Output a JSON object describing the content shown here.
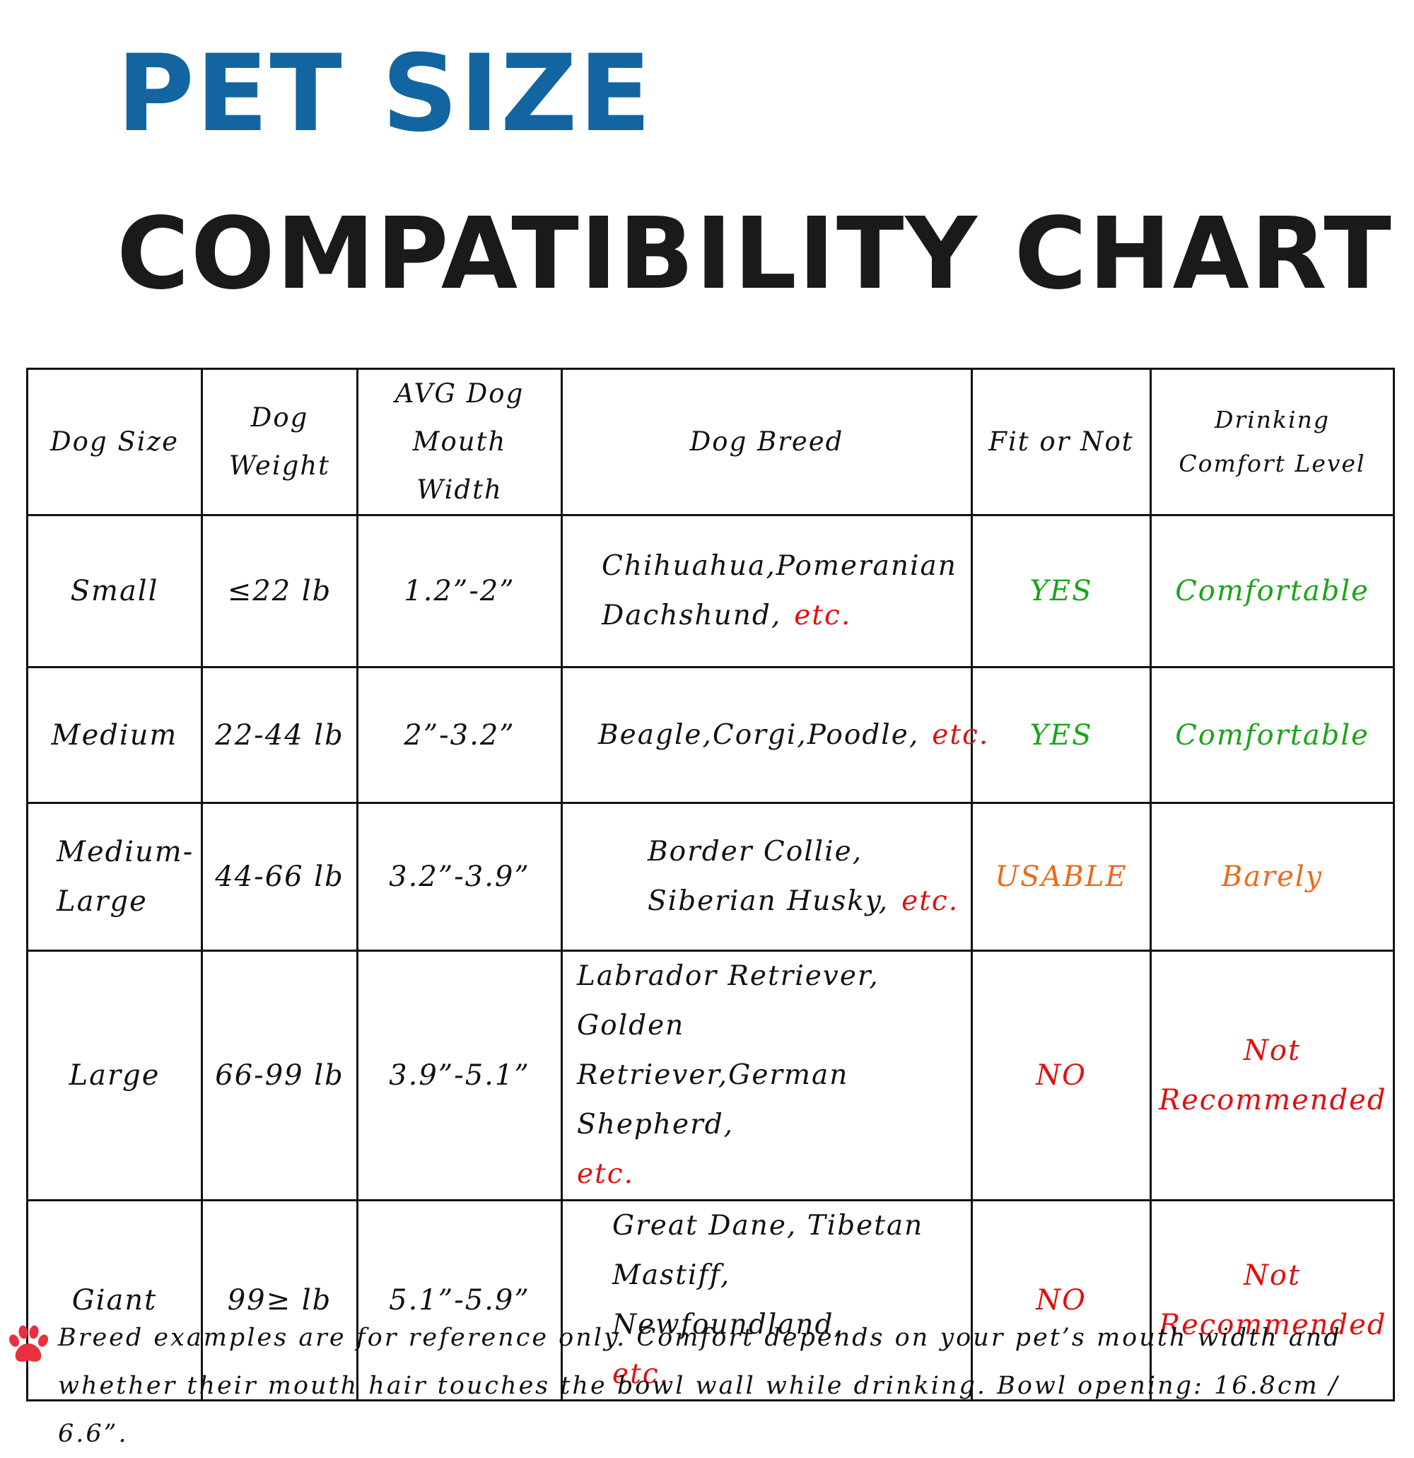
{
  "colors": {
    "title_blue": "#1265a0",
    "title_black": "#1a1a1a",
    "green": "#1aa51a",
    "orange": "#ec6a1a",
    "red": "#e01010",
    "paw_red": "#e8303e"
  },
  "title": {
    "line1": "PET SIZE",
    "line2": "COMPATIBILITY CHART"
  },
  "table": {
    "headers": {
      "size": "Dog Size",
      "weight_1": "Dog",
      "weight_2": "Weight",
      "mouth_1": "AVG Dog",
      "mouth_2": "Mouth Width",
      "breed": "Dog Breed",
      "fit": "Fit or Not",
      "comfort_1": "Drinking",
      "comfort_2": "Comfort Level"
    },
    "rows": [
      {
        "size": "Small",
        "weight": "≤22 lb",
        "mouth": "1.2”-2”",
        "breed_1": "Chihuahua,Pomeranian",
        "breed_2": "Dachshund,",
        "etc": "etc.",
        "fit": "YES",
        "comfort": "Comfortable"
      },
      {
        "size": "Medium",
        "weight": "22-44 lb",
        "mouth": "2”-3.2”",
        "breed_1": "Beagle,Corgi,Poodle,",
        "etc": "etc.",
        "fit": "YES",
        "comfort": "Comfortable"
      },
      {
        "size_1": "Medium-",
        "size_2": "Large",
        "weight": "44-66 lb",
        "mouth": "3.2”-3.9”",
        "breed_1": "Border Collie,",
        "breed_2": "Siberian Husky,",
        "etc": "etc.",
        "fit": "USABLE",
        "comfort": "Barely"
      },
      {
        "size": "Large",
        "weight": "66-99 lb",
        "mouth": "3.9”-5.1”",
        "breed_1": "Labrador Retriever, Golden",
        "breed_2": "Retriever,German Shepherd,",
        "etc": "etc.",
        "fit": "NO",
        "comfort_1": "Not",
        "comfort_2": "Recommended"
      },
      {
        "size": "Giant",
        "weight": "99≥ lb",
        "mouth": "5.1”-5.9”",
        "breed_1": "Great Dane, Tibetan",
        "breed_2": "Mastiff, Newfoundland,",
        "etc": "etc.",
        "fit": "NO",
        "comfort_1": "Not",
        "comfort_2": "Recommended"
      }
    ]
  },
  "footnote": {
    "icon": "paw-print-icon",
    "text": "Breed examples are for reference only. Comfort depends on your pet’s mouth width and whether their mouth hair touches the bowl wall while drinking. Bowl opening: 16.8cm / 6.6”."
  }
}
